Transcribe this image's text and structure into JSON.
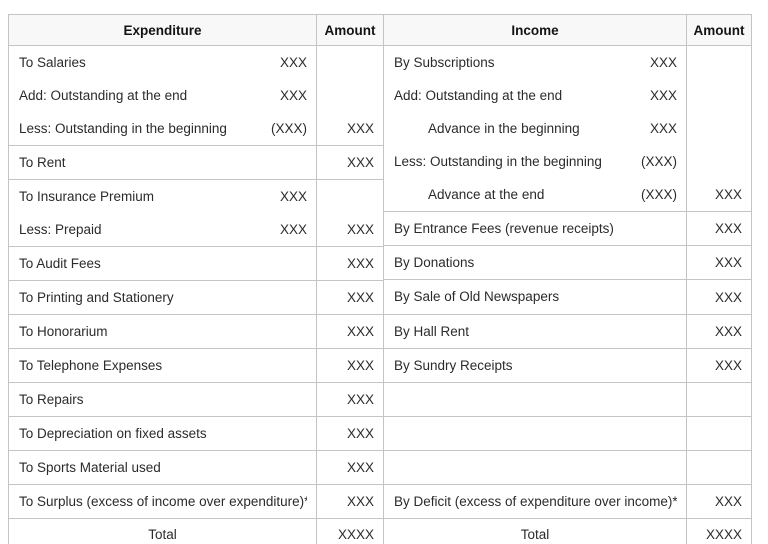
{
  "placeholders": {
    "value": "XXX",
    "value_negative": "(XXX)",
    "total_value": "XXXX"
  },
  "account_table": {
    "left": {
      "header": {
        "particulars": "Expenditure",
        "amount": "Amount"
      },
      "rows": [
        {
          "lines": [
            {
              "label": "To Salaries",
              "sub": "XXX",
              "indent": false
            },
            {
              "label": "Add: Outstanding at the end",
              "sub": "XXX",
              "indent": false
            },
            {
              "label": "Less: Outstanding in the beginning",
              "sub": "(XXX)",
              "indent": false
            }
          ],
          "amount": "XXX"
        },
        {
          "lines": [
            {
              "label": "To Rent",
              "sub": "",
              "indent": false
            }
          ],
          "amount": "XXX"
        },
        {
          "lines": [
            {
              "label": "To Insurance Premium",
              "sub": "XXX",
              "indent": false
            },
            {
              "label": "Less: Prepaid",
              "sub": "XXX",
              "indent": false
            }
          ],
          "amount": "XXX"
        },
        {
          "lines": [
            {
              "label": "To Audit Fees",
              "sub": "",
              "indent": false
            }
          ],
          "amount": "XXX"
        },
        {
          "lines": [
            {
              "label": "To Printing and Stationery",
              "sub": "",
              "indent": false
            }
          ],
          "amount": "XXX"
        },
        {
          "lines": [
            {
              "label": "To Honorarium",
              "sub": "",
              "indent": false
            }
          ],
          "amount": "XXX"
        },
        {
          "lines": [
            {
              "label": "To Telephone Expenses",
              "sub": "",
              "indent": false
            }
          ],
          "amount": "XXX"
        },
        {
          "lines": [
            {
              "label": "To Repairs",
              "sub": "",
              "indent": false
            }
          ],
          "amount": "XXX"
        },
        {
          "lines": [
            {
              "label": "To Depreciation on fixed assets",
              "sub": "",
              "indent": false
            }
          ],
          "amount": "XXX"
        },
        {
          "lines": [
            {
              "label": "To Sports Material used",
              "sub": "",
              "indent": false
            }
          ],
          "amount": "XXX"
        },
        {
          "lines": [
            {
              "label": "To Surplus (excess of income over expenditure)*",
              "sub": "",
              "indent": false
            }
          ],
          "amount": "XXX"
        }
      ],
      "total": {
        "label": "Total",
        "amount": "XXXX"
      }
    },
    "right": {
      "header": {
        "particulars": "Income",
        "amount": "Amount"
      },
      "rows": [
        {
          "lines": [
            {
              "label": "By Subscriptions",
              "sub": "XXX",
              "indent": false
            },
            {
              "label": "Add: Outstanding at the end",
              "sub": "XXX",
              "indent": false
            },
            {
              "label": "Advance in the beginning",
              "sub": "XXX",
              "indent": true
            },
            {
              "label": "Less: Outstanding in the beginning",
              "sub": "(XXX)",
              "indent": false
            },
            {
              "label": "Advance at the end",
              "sub": "(XXX)",
              "indent": true
            }
          ],
          "amount": "XXX"
        },
        {
          "lines": [
            {
              "label": "By Entrance Fees (revenue receipts)",
              "sub": "",
              "indent": false
            }
          ],
          "amount": "XXX"
        },
        {
          "lines": [
            {
              "label": "By Donations",
              "sub": "",
              "indent": false
            }
          ],
          "amount": "XXX"
        },
        {
          "lines": [
            {
              "label": "By Sale of Old Newspapers",
              "sub": "",
              "indent": false
            }
          ],
          "amount": "XXX"
        },
        {
          "lines": [
            {
              "label": "By Hall Rent",
              "sub": "",
              "indent": false
            }
          ],
          "amount": "XXX"
        },
        {
          "lines": [
            {
              "label": "By Sundry Receipts",
              "sub": "",
              "indent": false
            }
          ],
          "amount": "XXX"
        },
        {
          "lines": [
            {
              "label": "",
              "sub": "",
              "indent": false
            }
          ],
          "amount": ""
        },
        {
          "lines": [
            {
              "label": "",
              "sub": "",
              "indent": false
            }
          ],
          "amount": ""
        },
        {
          "lines": [
            {
              "label": "",
              "sub": "",
              "indent": false
            }
          ],
          "amount": ""
        },
        {
          "lines": [
            {
              "label": "By Deficit (excess of expenditure over income)*",
              "sub": "",
              "indent": false
            }
          ],
          "amount": "XXX"
        }
      ],
      "total": {
        "label": "Total",
        "amount": "XXXX"
      }
    },
    "style": {
      "border_color": "#c4c4c4",
      "header_background": "#f8f8f8",
      "text_color": "#2b2b2b"
    }
  }
}
